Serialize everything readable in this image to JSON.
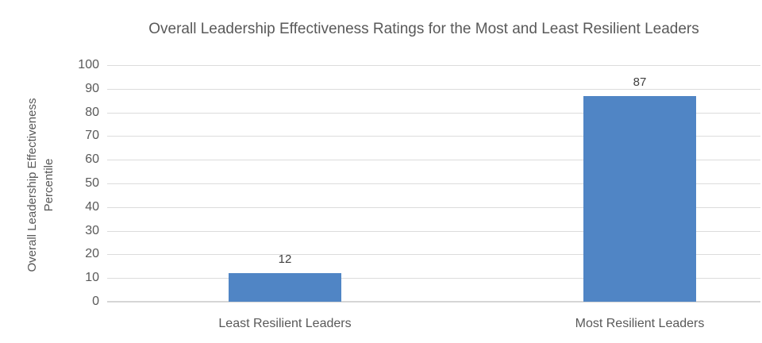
{
  "chart_data": {
    "type": "bar",
    "title": "Overall Leadership Effectiveness Ratings for the Most and Least Resilient Leaders",
    "categories": [
      "Least Resilient Leaders",
      "Most Resilient Leaders"
    ],
    "values": [
      12,
      87
    ],
    "data_labels": [
      "12",
      "87"
    ],
    "xlabel": "",
    "ylabel": "Overall Leadership Effectiveness Percentile",
    "ylabel_lines": [
      "Overall Leadership Effectiveness",
      "Percentile"
    ],
    "ylim": [
      0,
      100
    ],
    "yticks": [
      100,
      90,
      80,
      70,
      60,
      50,
      40,
      30,
      20,
      10,
      0
    ],
    "grid": true,
    "legend": "none",
    "colors": {
      "bar": "#5085C5",
      "axis_text": "#595959",
      "data_label_text": "#404040",
      "gridline": "#DCDCDC",
      "axis_line": "#D6D6D6",
      "background": "#FFFFFF"
    }
  }
}
